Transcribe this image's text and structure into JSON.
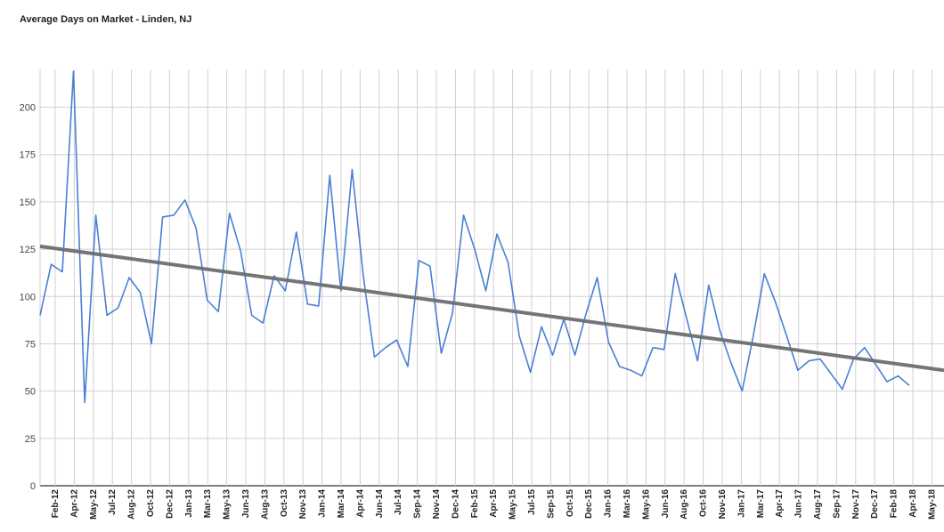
{
  "chart_data": {
    "type": "line",
    "title": "Average Days on Market - Linden, NJ",
    "xlabel": "",
    "ylabel": "",
    "ylim": [
      0,
      220
    ],
    "yticks": [
      0,
      25,
      50,
      75,
      100,
      125,
      150,
      175,
      200
    ],
    "grid": true,
    "x_tick_labels": [
      "Feb-12",
      "Apr-12",
      "May-12",
      "Jul-12",
      "Aug-12",
      "Oct-12",
      "Dec-12",
      "Jan-13",
      "Mar-13",
      "May-13",
      "Jun-13",
      "Aug-13",
      "Oct-13",
      "Nov-13",
      "Jan-14",
      "Mar-14",
      "Apr-14",
      "Jun-14",
      "Jul-14",
      "Sep-14",
      "Nov-14",
      "Dec-14",
      "Feb-15",
      "Apr-15",
      "May-15",
      "Jul-15",
      "Sep-15",
      "Oct-15",
      "Dec-15",
      "Jan-16",
      "Mar-16",
      "May-16",
      "Jun-16",
      "Aug-16",
      "Oct-16",
      "Nov-16",
      "Jan-17",
      "Mar-17",
      "Apr-17",
      "Jun-17",
      "Aug-17",
      "Sep-17",
      "Nov-17",
      "Dec-17",
      "Feb-18",
      "Apr-18",
      "May-18"
    ],
    "series": [
      {
        "type": "line",
        "color": "#4a7fd4",
        "values": [
          90,
          117,
          113,
          219,
          44,
          143,
          90,
          94,
          110,
          102,
          75,
          142,
          143,
          151,
          136,
          98,
          92,
          144,
          124,
          90,
          86,
          111,
          103,
          134,
          96,
          95,
          164,
          103,
          167,
          111,
          68,
          73,
          77,
          63,
          119,
          116,
          70,
          91,
          143,
          125,
          103,
          133,
          118,
          79,
          60,
          84,
          69,
          88,
          69,
          91,
          110,
          76,
          63,
          61,
          58,
          73,
          72,
          112,
          89,
          66,
          106,
          82,
          65,
          50,
          79,
          112,
          97,
          79,
          61,
          66,
          67,
          59,
          51,
          67,
          73,
          64,
          55,
          58,
          53
        ]
      },
      {
        "type": "trendline",
        "color": "#6e6e6e",
        "start": 126.5,
        "end": 61
      }
    ]
  }
}
